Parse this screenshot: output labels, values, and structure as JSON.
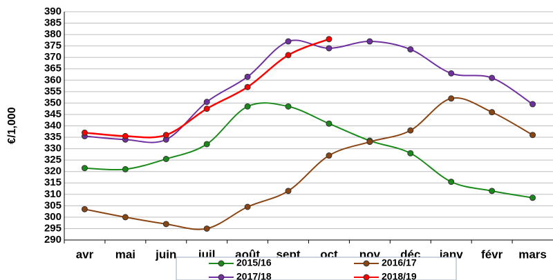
{
  "chart_data": {
    "type": "line",
    "y_label": "€/1,000",
    "categories": [
      "avr",
      "mai",
      "juin",
      "juil",
      "août",
      "sept",
      "oct",
      "nov",
      "déc",
      "janv",
      "févr",
      "mars"
    ],
    "series": [
      {
        "name": "2015/16",
        "color": "#1a8a1a",
        "values": [
          321.5,
          321,
          325.5,
          332,
          348.5,
          348.5,
          341,
          333.5,
          328,
          315.5,
          311.5,
          308.5
        ]
      },
      {
        "name": "2016/17",
        "color": "#8b4513",
        "values": [
          303.5,
          300,
          297,
          295,
          304.5,
          311.5,
          327,
          333,
          338,
          352,
          346,
          336
        ]
      },
      {
        "name": "2017/18",
        "color": "#7030a0",
        "values": [
          335.5,
          334,
          334,
          350.5,
          361.5,
          377,
          374,
          377,
          373.5,
          363,
          361,
          349.5
        ]
      },
      {
        "name": "2018/19",
        "color": "#ff0000",
        "values": [
          337,
          335.5,
          336,
          347.5,
          357,
          371,
          378,
          null,
          null,
          null,
          null,
          null
        ]
      }
    ],
    "ylim": [
      290,
      390
    ],
    "yticks": [
      290,
      295,
      300,
      305,
      310,
      315,
      320,
      325,
      330,
      335,
      340,
      345,
      350,
      355,
      360,
      365,
      370,
      375,
      380,
      385,
      390
    ],
    "grid": true,
    "smooth": true
  }
}
